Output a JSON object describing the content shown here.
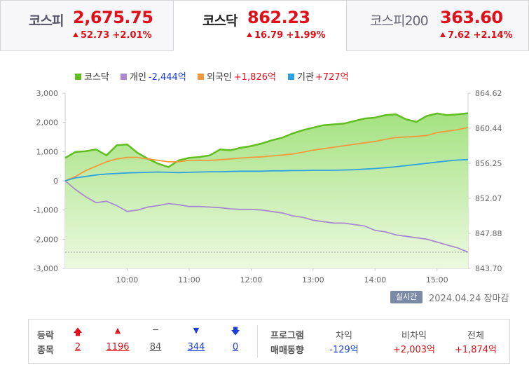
{
  "tabs": [
    {
      "name": "코스피",
      "value": "2,675.75",
      "change": "52.73",
      "pct": "+2.01%"
    },
    {
      "name": "코스닥",
      "value": "862.23",
      "change": "16.79",
      "pct": "+1.99%"
    },
    {
      "name": "코스피200",
      "value": "363.60",
      "change": "7.62",
      "pct": "+2.14%"
    }
  ],
  "legend": {
    "kosdaq": "코스닥",
    "individual": "개인",
    "individual_value": "-2,444억",
    "foreign": "외국인",
    "foreign_value": "+1,826억",
    "institution": "기관",
    "institution_value": "+727억"
  },
  "realtime_label": "실시간",
  "date_status": "2024.04.24 장마감",
  "stats": {
    "label_line1": "등락",
    "label_line2": "종목",
    "upper_limit": "2",
    "rise": "1196",
    "unchanged": "84",
    "fall": "344",
    "lower_limit": "0"
  },
  "program": {
    "label_line1": "프로그램",
    "label_line2": "매매동향",
    "arbitrage_label": "차익",
    "arbitrage_value": "-129억",
    "nonarbitrage_label": "비차익",
    "nonarbitrage_value": "+2,003억",
    "total_label": "전체",
    "total_value": "+1,874억"
  },
  "colors": {
    "up": "#e0101a",
    "down": "#1a3fd6",
    "kosdaq": "#5fbf1e",
    "individual": "#a98ad0",
    "foreign": "#f29a3c",
    "institution": "#2fa3e0"
  },
  "chart_data": {
    "type": "line",
    "x_ticks": [
      "10:00",
      "11:00",
      "12:00",
      "13:00",
      "14:00",
      "15:00"
    ],
    "x_range": [
      "09:00",
      "15:30"
    ],
    "left_axis": {
      "ticks": [
        "3,000",
        "2,000",
        "1,000",
        "0",
        "-1,000",
        "-2,000",
        "-3,000"
      ],
      "ylim": [
        -3000,
        3000
      ],
      "unit": "억"
    },
    "right_axis": {
      "ticks": [
        "864.62",
        "860.44",
        "856.25",
        "852.07",
        "847.88",
        "843.70"
      ],
      "ylim": [
        843.7,
        864.62
      ]
    },
    "series": [
      {
        "name": "코스닥",
        "axis": "right",
        "type": "area",
        "x": [
          "09:00",
          "09:10",
          "09:20",
          "09:30",
          "09:40",
          "09:50",
          "10:00",
          "10:10",
          "10:20",
          "10:30",
          "10:40",
          "10:50",
          "11:00",
          "11:10",
          "11:20",
          "11:30",
          "11:40",
          "11:50",
          "12:00",
          "12:10",
          "12:20",
          "12:30",
          "12:40",
          "12:50",
          "13:00",
          "13:10",
          "13:20",
          "13:30",
          "13:40",
          "13:50",
          "14:00",
          "14:10",
          "14:20",
          "14:30",
          "14:40",
          "14:50",
          "15:00",
          "15:10",
          "15:20",
          "15:30"
        ],
        "y": [
          856.9,
          857.6,
          857.7,
          857.9,
          857.2,
          858.4,
          858.5,
          857.5,
          856.8,
          856.2,
          855.8,
          856.6,
          856.9,
          857.0,
          857.2,
          857.9,
          857.8,
          858.1,
          858.3,
          858.6,
          859.0,
          859.3,
          859.8,
          860.2,
          860.5,
          860.8,
          860.9,
          861.0,
          861.3,
          861.6,
          861.7,
          862.0,
          862.1,
          861.5,
          861.2,
          861.9,
          862.2,
          862.0,
          862.1,
          862.23
        ]
      },
      {
        "name": "개인",
        "axis": "left",
        "x": [
          "09:00",
          "09:10",
          "09:20",
          "09:30",
          "09:40",
          "09:50",
          "10:00",
          "10:10",
          "10:20",
          "10:30",
          "10:40",
          "10:50",
          "11:00",
          "11:10",
          "11:20",
          "11:30",
          "11:40",
          "11:50",
          "12:00",
          "12:10",
          "12:20",
          "12:30",
          "12:40",
          "12:50",
          "13:00",
          "13:10",
          "13:20",
          "13:30",
          "13:40",
          "13:50",
          "14:00",
          "14:10",
          "14:20",
          "14:30",
          "14:40",
          "14:50",
          "15:00",
          "15:10",
          "15:20",
          "15:30"
        ],
        "y": [
          0,
          -300,
          -550,
          -750,
          -700,
          -850,
          -1050,
          -1000,
          -900,
          -850,
          -780,
          -820,
          -880,
          -880,
          -900,
          -920,
          -960,
          -980,
          -980,
          -1000,
          -1050,
          -1100,
          -1200,
          -1250,
          -1350,
          -1400,
          -1450,
          -1450,
          -1500,
          -1550,
          -1700,
          -1750,
          -1850,
          -1900,
          -1950,
          -2000,
          -2100,
          -2200,
          -2300,
          -2444
        ]
      },
      {
        "name": "외국인",
        "axis": "left",
        "x": [
          "09:00",
          "09:10",
          "09:20",
          "09:30",
          "09:40",
          "09:50",
          "10:00",
          "10:10",
          "10:20",
          "10:30",
          "10:40",
          "10:50",
          "11:00",
          "11:10",
          "11:20",
          "11:30",
          "11:40",
          "11:50",
          "12:00",
          "12:10",
          "12:20",
          "12:30",
          "12:40",
          "12:50",
          "13:00",
          "13:10",
          "13:20",
          "13:30",
          "13:40",
          "13:50",
          "14:00",
          "14:10",
          "14:20",
          "14:30",
          "14:40",
          "14:50",
          "15:00",
          "15:10",
          "15:20",
          "15:30"
        ],
        "y": [
          0,
          150,
          350,
          500,
          650,
          750,
          800,
          800,
          750,
          700,
          650,
          650,
          700,
          700,
          700,
          720,
          750,
          780,
          800,
          820,
          850,
          880,
          920,
          980,
          1050,
          1100,
          1150,
          1200,
          1250,
          1300,
          1350,
          1420,
          1480,
          1500,
          1520,
          1550,
          1650,
          1700,
          1750,
          1826
        ]
      },
      {
        "name": "기관",
        "axis": "left",
        "x": [
          "09:00",
          "09:10",
          "09:20",
          "09:30",
          "09:40",
          "09:50",
          "10:00",
          "10:10",
          "10:20",
          "10:30",
          "10:40",
          "10:50",
          "11:00",
          "11:10",
          "11:20",
          "11:30",
          "11:40",
          "11:50",
          "12:00",
          "12:10",
          "12:20",
          "12:30",
          "12:40",
          "12:50",
          "13:00",
          "13:10",
          "13:20",
          "13:30",
          "13:40",
          "13:50",
          "14:00",
          "14:10",
          "14:20",
          "14:30",
          "14:40",
          "14:50",
          "15:00",
          "15:10",
          "15:20",
          "15:30"
        ],
        "y": [
          0,
          100,
          150,
          200,
          230,
          250,
          270,
          280,
          290,
          300,
          290,
          280,
          290,
          300,
          310,
          310,
          320,
          330,
          330,
          330,
          340,
          340,
          350,
          350,
          360,
          360,
          360,
          370,
          380,
          400,
          420,
          450,
          480,
          520,
          560,
          600,
          640,
          680,
          710,
          727
        ]
      }
    ],
    "reference_line": {
      "axis": "left",
      "y": -2444,
      "style": "dashed"
    },
    "grid": false,
    "legend_position": "top-left"
  }
}
